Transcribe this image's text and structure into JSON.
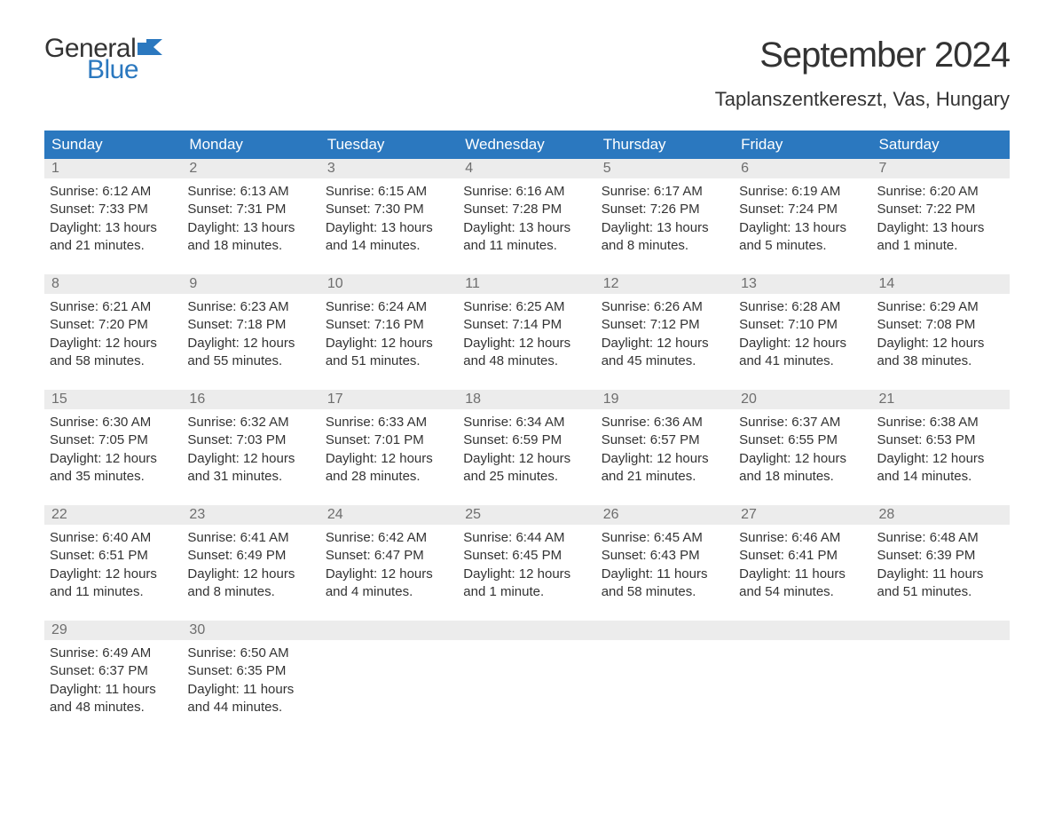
{
  "logo": {
    "word1": "General",
    "word2": "Blue"
  },
  "title": "September 2024",
  "location": "Taplanszentkereszt, Vas, Hungary",
  "colors": {
    "accent": "#2b78bf",
    "header_text": "#ffffff",
    "daynum_bg": "#ececec",
    "daynum_text": "#6e6e6e",
    "body_text": "#333333",
    "background": "#ffffff"
  },
  "layout": {
    "columns": 7,
    "rows": 5,
    "type": "calendar-table"
  },
  "weekdays": [
    "Sunday",
    "Monday",
    "Tuesday",
    "Wednesday",
    "Thursday",
    "Friday",
    "Saturday"
  ],
  "weeks": [
    [
      {
        "n": "1",
        "sunrise": "Sunrise: 6:12 AM",
        "sunset": "Sunset: 7:33 PM",
        "daylight": "Daylight: 13 hours and 21 minutes."
      },
      {
        "n": "2",
        "sunrise": "Sunrise: 6:13 AM",
        "sunset": "Sunset: 7:31 PM",
        "daylight": "Daylight: 13 hours and 18 minutes."
      },
      {
        "n": "3",
        "sunrise": "Sunrise: 6:15 AM",
        "sunset": "Sunset: 7:30 PM",
        "daylight": "Daylight: 13 hours and 14 minutes."
      },
      {
        "n": "4",
        "sunrise": "Sunrise: 6:16 AM",
        "sunset": "Sunset: 7:28 PM",
        "daylight": "Daylight: 13 hours and 11 minutes."
      },
      {
        "n": "5",
        "sunrise": "Sunrise: 6:17 AM",
        "sunset": "Sunset: 7:26 PM",
        "daylight": "Daylight: 13 hours and 8 minutes."
      },
      {
        "n": "6",
        "sunrise": "Sunrise: 6:19 AM",
        "sunset": "Sunset: 7:24 PM",
        "daylight": "Daylight: 13 hours and 5 minutes."
      },
      {
        "n": "7",
        "sunrise": "Sunrise: 6:20 AM",
        "sunset": "Sunset: 7:22 PM",
        "daylight": "Daylight: 13 hours and 1 minute."
      }
    ],
    [
      {
        "n": "8",
        "sunrise": "Sunrise: 6:21 AM",
        "sunset": "Sunset: 7:20 PM",
        "daylight": "Daylight: 12 hours and 58 minutes."
      },
      {
        "n": "9",
        "sunrise": "Sunrise: 6:23 AM",
        "sunset": "Sunset: 7:18 PM",
        "daylight": "Daylight: 12 hours and 55 minutes."
      },
      {
        "n": "10",
        "sunrise": "Sunrise: 6:24 AM",
        "sunset": "Sunset: 7:16 PM",
        "daylight": "Daylight: 12 hours and 51 minutes."
      },
      {
        "n": "11",
        "sunrise": "Sunrise: 6:25 AM",
        "sunset": "Sunset: 7:14 PM",
        "daylight": "Daylight: 12 hours and 48 minutes."
      },
      {
        "n": "12",
        "sunrise": "Sunrise: 6:26 AM",
        "sunset": "Sunset: 7:12 PM",
        "daylight": "Daylight: 12 hours and 45 minutes."
      },
      {
        "n": "13",
        "sunrise": "Sunrise: 6:28 AM",
        "sunset": "Sunset: 7:10 PM",
        "daylight": "Daylight: 12 hours and 41 minutes."
      },
      {
        "n": "14",
        "sunrise": "Sunrise: 6:29 AM",
        "sunset": "Sunset: 7:08 PM",
        "daylight": "Daylight: 12 hours and 38 minutes."
      }
    ],
    [
      {
        "n": "15",
        "sunrise": "Sunrise: 6:30 AM",
        "sunset": "Sunset: 7:05 PM",
        "daylight": "Daylight: 12 hours and 35 minutes."
      },
      {
        "n": "16",
        "sunrise": "Sunrise: 6:32 AM",
        "sunset": "Sunset: 7:03 PM",
        "daylight": "Daylight: 12 hours and 31 minutes."
      },
      {
        "n": "17",
        "sunrise": "Sunrise: 6:33 AM",
        "sunset": "Sunset: 7:01 PM",
        "daylight": "Daylight: 12 hours and 28 minutes."
      },
      {
        "n": "18",
        "sunrise": "Sunrise: 6:34 AM",
        "sunset": "Sunset: 6:59 PM",
        "daylight": "Daylight: 12 hours and 25 minutes."
      },
      {
        "n": "19",
        "sunrise": "Sunrise: 6:36 AM",
        "sunset": "Sunset: 6:57 PM",
        "daylight": "Daylight: 12 hours and 21 minutes."
      },
      {
        "n": "20",
        "sunrise": "Sunrise: 6:37 AM",
        "sunset": "Sunset: 6:55 PM",
        "daylight": "Daylight: 12 hours and 18 minutes."
      },
      {
        "n": "21",
        "sunrise": "Sunrise: 6:38 AM",
        "sunset": "Sunset: 6:53 PM",
        "daylight": "Daylight: 12 hours and 14 minutes."
      }
    ],
    [
      {
        "n": "22",
        "sunrise": "Sunrise: 6:40 AM",
        "sunset": "Sunset: 6:51 PM",
        "daylight": "Daylight: 12 hours and 11 minutes."
      },
      {
        "n": "23",
        "sunrise": "Sunrise: 6:41 AM",
        "sunset": "Sunset: 6:49 PM",
        "daylight": "Daylight: 12 hours and 8 minutes."
      },
      {
        "n": "24",
        "sunrise": "Sunrise: 6:42 AM",
        "sunset": "Sunset: 6:47 PM",
        "daylight": "Daylight: 12 hours and 4 minutes."
      },
      {
        "n": "25",
        "sunrise": "Sunrise: 6:44 AM",
        "sunset": "Sunset: 6:45 PM",
        "daylight": "Daylight: 12 hours and 1 minute."
      },
      {
        "n": "26",
        "sunrise": "Sunrise: 6:45 AM",
        "sunset": "Sunset: 6:43 PM",
        "daylight": "Daylight: 11 hours and 58 minutes."
      },
      {
        "n": "27",
        "sunrise": "Sunrise: 6:46 AM",
        "sunset": "Sunset: 6:41 PM",
        "daylight": "Daylight: 11 hours and 54 minutes."
      },
      {
        "n": "28",
        "sunrise": "Sunrise: 6:48 AM",
        "sunset": "Sunset: 6:39 PM",
        "daylight": "Daylight: 11 hours and 51 minutes."
      }
    ],
    [
      {
        "n": "29",
        "sunrise": "Sunrise: 6:49 AM",
        "sunset": "Sunset: 6:37 PM",
        "daylight": "Daylight: 11 hours and 48 minutes."
      },
      {
        "n": "30",
        "sunrise": "Sunrise: 6:50 AM",
        "sunset": "Sunset: 6:35 PM",
        "daylight": "Daylight: 11 hours and 44 minutes."
      },
      null,
      null,
      null,
      null,
      null
    ]
  ]
}
